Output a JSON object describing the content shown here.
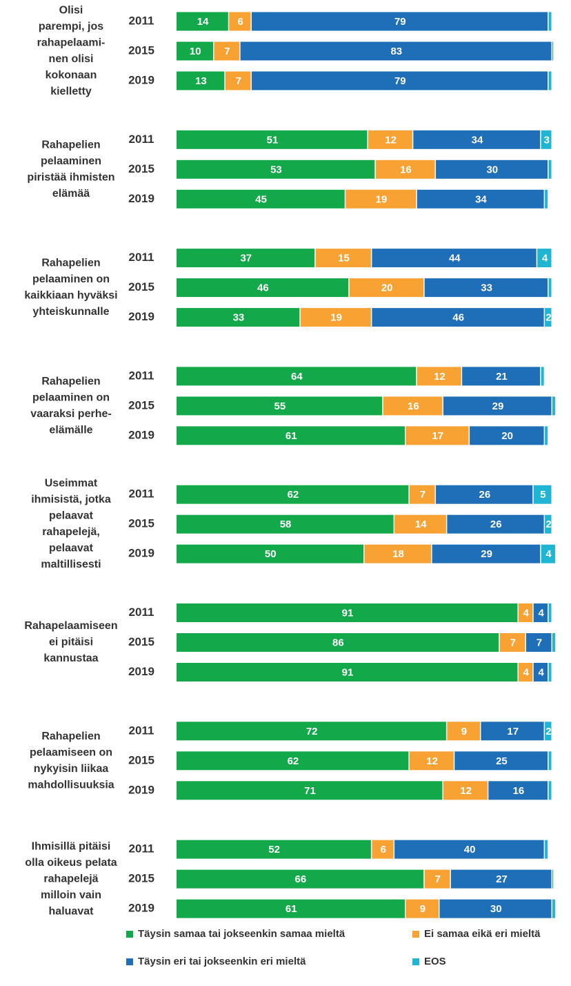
{
  "chart_data": {
    "type": "stacked-bar-horizontal",
    "categories": [
      [
        "Olisi",
        "parempi, jos",
        "rahapelaami-",
        "nen olisi",
        "kokonaan",
        "kielletty"
      ],
      [
        "Rahapelien",
        "pelaaminen",
        "piristää ihmisten",
        "elämää"
      ],
      [
        "Rahapelien",
        "pelaaminen on",
        "kaikkiaan hyväksi",
        "yhteiskunnalle"
      ],
      [
        "Rahapelien",
        "pelaaminen on",
        "vaaraksi perhe-",
        "elämälle"
      ],
      [
        "Useimmat",
        "ihmisistä, jotka",
        "pelaavat",
        "rahapelejä,",
        "pelaavat",
        "maltillisesti"
      ],
      [
        "Rahapelaamiseen",
        "ei pitäisi",
        "kannustaa"
      ],
      [
        "Rahapelien",
        "pelaamiseen on",
        "nykyisin liikaa",
        "mahdollisuuksia"
      ],
      [
        "Ihmisillä pitäisi",
        "olla oikeus pelata",
        "rahapelejä",
        "milloin vain",
        "haluavat"
      ]
    ],
    "years": [
      "2011",
      "2015",
      "2019"
    ],
    "xlim": [
      0,
      100
    ],
    "series": [
      {
        "name": "Täysin samaa tai jokseenkin samaa mieltä",
        "color": "#13a84a",
        "values": [
          [
            14,
            10,
            13
          ],
          [
            51,
            53,
            45
          ],
          [
            37,
            46,
            33
          ],
          [
            64,
            55,
            61
          ],
          [
            62,
            58,
            50
          ],
          [
            91,
            86,
            91
          ],
          [
            72,
            62,
            71
          ],
          [
            52,
            66,
            61
          ]
        ]
      },
      {
        "name": "Ei samaa eikä eri mieltä",
        "color": "#f7a233",
        "values": [
          [
            6,
            7,
            7
          ],
          [
            12,
            16,
            19
          ],
          [
            15,
            20,
            19
          ],
          [
            12,
            16,
            17
          ],
          [
            7,
            14,
            18
          ],
          [
            4,
            7,
            4
          ],
          [
            9,
            12,
            12
          ],
          [
            6,
            7,
            9
          ]
        ]
      },
      {
        "name": "Täysin eri tai jokseenkin eri mieltä",
        "color": "#1e6fb8",
        "values": [
          [
            79,
            83,
            79
          ],
          [
            34,
            30,
            34
          ],
          [
            44,
            33,
            46
          ],
          [
            21,
            29,
            20
          ],
          [
            26,
            26,
            29
          ],
          [
            4,
            7,
            4
          ],
          [
            17,
            25,
            16
          ],
          [
            40,
            27,
            30
          ]
        ]
      },
      {
        "name": "EOS",
        "color": "#1fb5d3",
        "values": [
          [
            1,
            0.5,
            1
          ],
          [
            3,
            1,
            1
          ],
          [
            4,
            1,
            2
          ],
          [
            1,
            1,
            1
          ],
          [
            5,
            2,
            4
          ],
          [
            1,
            1,
            1
          ],
          [
            2,
            1,
            1
          ],
          [
            1,
            0.5,
            1
          ]
        ]
      }
    ],
    "legend": "bottom"
  }
}
